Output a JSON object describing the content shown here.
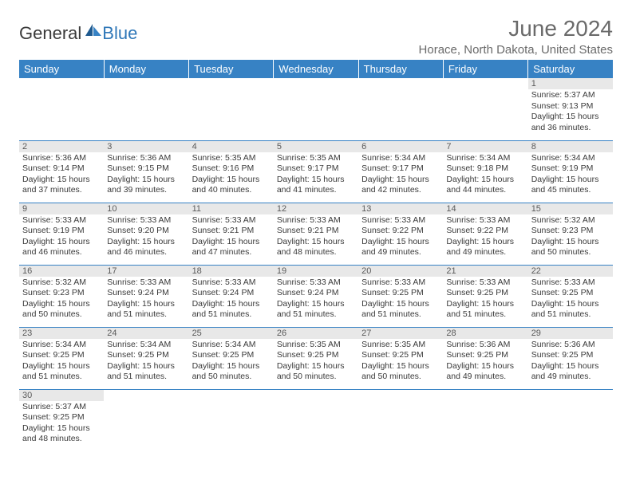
{
  "logo": {
    "general": "General",
    "blue": "Blue"
  },
  "header": {
    "month_year": "June 2024",
    "location": "Horace, North Dakota, United States"
  },
  "styling": {
    "header_bg": "#3782c4",
    "header_text": "#ffffff",
    "daynum_bg": "#e8e8e8",
    "border_color": "#3782c4",
    "body_text": "#3a3a3a",
    "title_color": "#6a6a6a",
    "logo_blue": "#2f77b8",
    "month_fontsize": 28,
    "location_fontsize": 15,
    "cell_fontsize": 10.5
  },
  "day_names": [
    "Sunday",
    "Monday",
    "Tuesday",
    "Wednesday",
    "Thursday",
    "Friday",
    "Saturday"
  ],
  "weeks": [
    [
      null,
      null,
      null,
      null,
      null,
      null,
      {
        "n": "1",
        "sr": "5:37 AM",
        "ss": "9:13 PM",
        "dl": "15 hours and 36 minutes."
      }
    ],
    [
      {
        "n": "2",
        "sr": "5:36 AM",
        "ss": "9:14 PM",
        "dl": "15 hours and 37 minutes."
      },
      {
        "n": "3",
        "sr": "5:36 AM",
        "ss": "9:15 PM",
        "dl": "15 hours and 39 minutes."
      },
      {
        "n": "4",
        "sr": "5:35 AM",
        "ss": "9:16 PM",
        "dl": "15 hours and 40 minutes."
      },
      {
        "n": "5",
        "sr": "5:35 AM",
        "ss": "9:17 PM",
        "dl": "15 hours and 41 minutes."
      },
      {
        "n": "6",
        "sr": "5:34 AM",
        "ss": "9:17 PM",
        "dl": "15 hours and 42 minutes."
      },
      {
        "n": "7",
        "sr": "5:34 AM",
        "ss": "9:18 PM",
        "dl": "15 hours and 44 minutes."
      },
      {
        "n": "8",
        "sr": "5:34 AM",
        "ss": "9:19 PM",
        "dl": "15 hours and 45 minutes."
      }
    ],
    [
      {
        "n": "9",
        "sr": "5:33 AM",
        "ss": "9:19 PM",
        "dl": "15 hours and 46 minutes."
      },
      {
        "n": "10",
        "sr": "5:33 AM",
        "ss": "9:20 PM",
        "dl": "15 hours and 46 minutes."
      },
      {
        "n": "11",
        "sr": "5:33 AM",
        "ss": "9:21 PM",
        "dl": "15 hours and 47 minutes."
      },
      {
        "n": "12",
        "sr": "5:33 AM",
        "ss": "9:21 PM",
        "dl": "15 hours and 48 minutes."
      },
      {
        "n": "13",
        "sr": "5:33 AM",
        "ss": "9:22 PM",
        "dl": "15 hours and 49 minutes."
      },
      {
        "n": "14",
        "sr": "5:33 AM",
        "ss": "9:22 PM",
        "dl": "15 hours and 49 minutes."
      },
      {
        "n": "15",
        "sr": "5:32 AM",
        "ss": "9:23 PM",
        "dl": "15 hours and 50 minutes."
      }
    ],
    [
      {
        "n": "16",
        "sr": "5:32 AM",
        "ss": "9:23 PM",
        "dl": "15 hours and 50 minutes."
      },
      {
        "n": "17",
        "sr": "5:33 AM",
        "ss": "9:24 PM",
        "dl": "15 hours and 51 minutes."
      },
      {
        "n": "18",
        "sr": "5:33 AM",
        "ss": "9:24 PM",
        "dl": "15 hours and 51 minutes."
      },
      {
        "n": "19",
        "sr": "5:33 AM",
        "ss": "9:24 PM",
        "dl": "15 hours and 51 minutes."
      },
      {
        "n": "20",
        "sr": "5:33 AM",
        "ss": "9:25 PM",
        "dl": "15 hours and 51 minutes."
      },
      {
        "n": "21",
        "sr": "5:33 AM",
        "ss": "9:25 PM",
        "dl": "15 hours and 51 minutes."
      },
      {
        "n": "22",
        "sr": "5:33 AM",
        "ss": "9:25 PM",
        "dl": "15 hours and 51 minutes."
      }
    ],
    [
      {
        "n": "23",
        "sr": "5:34 AM",
        "ss": "9:25 PM",
        "dl": "15 hours and 51 minutes."
      },
      {
        "n": "24",
        "sr": "5:34 AM",
        "ss": "9:25 PM",
        "dl": "15 hours and 51 minutes."
      },
      {
        "n": "25",
        "sr": "5:34 AM",
        "ss": "9:25 PM",
        "dl": "15 hours and 50 minutes."
      },
      {
        "n": "26",
        "sr": "5:35 AM",
        "ss": "9:25 PM",
        "dl": "15 hours and 50 minutes."
      },
      {
        "n": "27",
        "sr": "5:35 AM",
        "ss": "9:25 PM",
        "dl": "15 hours and 50 minutes."
      },
      {
        "n": "28",
        "sr": "5:36 AM",
        "ss": "9:25 PM",
        "dl": "15 hours and 49 minutes."
      },
      {
        "n": "29",
        "sr": "5:36 AM",
        "ss": "9:25 PM",
        "dl": "15 hours and 49 minutes."
      }
    ],
    [
      {
        "n": "30",
        "sr": "5:37 AM",
        "ss": "9:25 PM",
        "dl": "15 hours and 48 minutes."
      },
      null,
      null,
      null,
      null,
      null,
      null
    ]
  ],
  "labels": {
    "sunrise": "Sunrise:",
    "sunset": "Sunset:",
    "daylight": "Daylight:"
  }
}
